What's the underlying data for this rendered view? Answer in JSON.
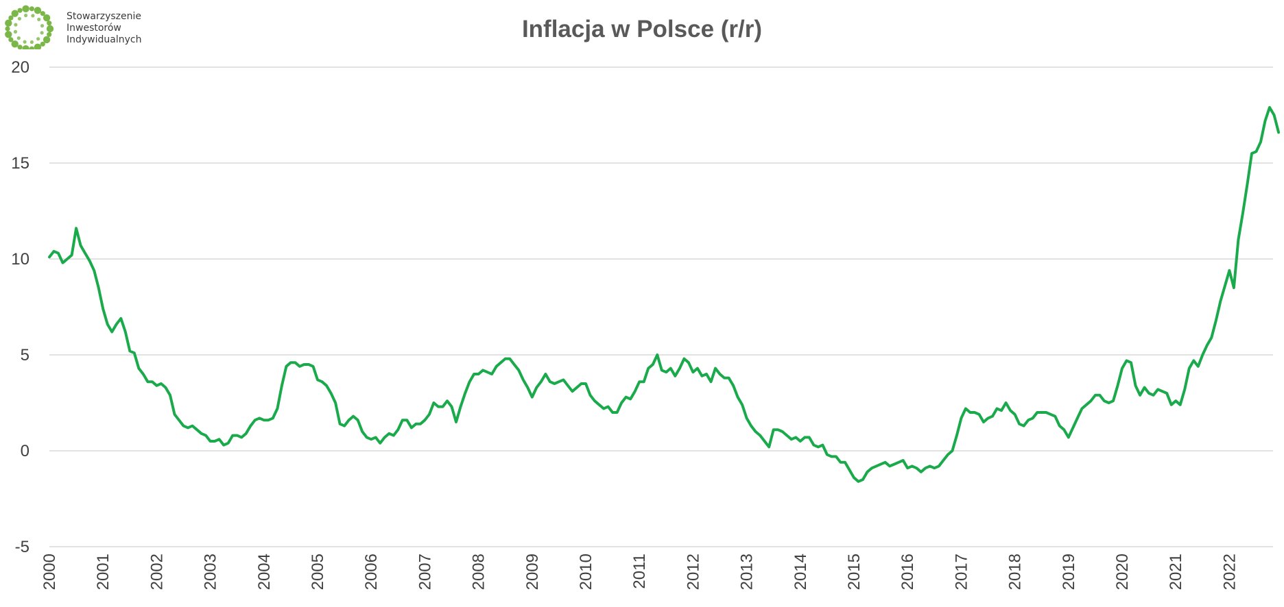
{
  "logo": {
    "lines": [
      "Stowarzyszenie",
      "Inwestorów",
      "Indywidualnych"
    ],
    "color": "#7ab648"
  },
  "chart_data": {
    "type": "line",
    "title": "Inflacja w Polsce (r/r)",
    "xlabel": "",
    "ylabel": "",
    "ylim": [
      -5,
      20
    ],
    "yticks": [
      20,
      15,
      10,
      5,
      0,
      -5
    ],
    "grid": true,
    "legend": "none",
    "line_color": "#1aaa4b",
    "x_start": "2000-01",
    "x_end": "2022-12",
    "x_frequency": "monthly",
    "x_tick_labels": [
      "2000",
      "2001",
      "2002",
      "2003",
      "2004",
      "2005",
      "2006",
      "2007",
      "2008",
      "2009",
      "2010",
      "2011",
      "2012",
      "2013",
      "2014",
      "2015",
      "2016",
      "2017",
      "2018",
      "2019",
      "2020",
      "2021",
      "2022"
    ],
    "series": [
      {
        "values": [
          10.1,
          10.4,
          10.3,
          9.8,
          10.0,
          10.2,
          11.6,
          10.7,
          10.3,
          9.9,
          9.4,
          8.5,
          7.4,
          6.6,
          6.2,
          6.6,
          6.9,
          6.2,
          5.2,
          5.1,
          4.3,
          4.0,
          3.6,
          3.6,
          3.4,
          3.5,
          3.3,
          2.9,
          1.9,
          1.6,
          1.3,
          1.2,
          1.3,
          1.1,
          0.9,
          0.8,
          0.5,
          0.5,
          0.6,
          0.3,
          0.4,
          0.8,
          0.8,
          0.7,
          0.9,
          1.3,
          1.6,
          1.7,
          1.6,
          1.6,
          1.7,
          2.2,
          3.4,
          4.4,
          4.6,
          4.6,
          4.4,
          4.5,
          4.5,
          4.4,
          3.7,
          3.6,
          3.4,
          3.0,
          2.5,
          1.4,
          1.3,
          1.6,
          1.8,
          1.6,
          1.0,
          0.7,
          0.6,
          0.7,
          0.4,
          0.7,
          0.9,
          0.8,
          1.1,
          1.6,
          1.6,
          1.2,
          1.4,
          1.4,
          1.6,
          1.9,
          2.5,
          2.3,
          2.3,
          2.6,
          2.3,
          1.5,
          2.3,
          3.0,
          3.6,
          4.0,
          4.0,
          4.2,
          4.1,
          4.0,
          4.4,
          4.6,
          4.8,
          4.8,
          4.5,
          4.2,
          3.7,
          3.3,
          2.8,
          3.3,
          3.6,
          4.0,
          3.6,
          3.5,
          3.6,
          3.7,
          3.4,
          3.1,
          3.3,
          3.5,
          3.5,
          2.9,
          2.6,
          2.4,
          2.2,
          2.3,
          2.0,
          2.0,
          2.5,
          2.8,
          2.7,
          3.1,
          3.6,
          3.6,
          4.3,
          4.5,
          5.0,
          4.2,
          4.1,
          4.3,
          3.9,
          4.3,
          4.8,
          4.6,
          4.1,
          4.3,
          3.9,
          4.0,
          3.6,
          4.3,
          4.0,
          3.8,
          3.8,
          3.4,
          2.8,
          2.4,
          1.7,
          1.3,
          1.0,
          0.8,
          0.5,
          0.2,
          1.1,
          1.1,
          1.0,
          0.8,
          0.6,
          0.7,
          0.5,
          0.7,
          0.7,
          0.3,
          0.2,
          0.3,
          -0.2,
          -0.3,
          -0.3,
          -0.6,
          -0.6,
          -1.0,
          -1.4,
          -1.6,
          -1.5,
          -1.1,
          -0.9,
          -0.8,
          -0.7,
          -0.6,
          -0.8,
          -0.7,
          -0.6,
          -0.5,
          -0.9,
          -0.8,
          -0.9,
          -1.1,
          -0.9,
          -0.8,
          -0.9,
          -0.8,
          -0.5,
          -0.2,
          0.0,
          0.8,
          1.7,
          2.2,
          2.0,
          2.0,
          1.9,
          1.5,
          1.7,
          1.8,
          2.2,
          2.1,
          2.5,
          2.1,
          1.9,
          1.4,
          1.3,
          1.6,
          1.7,
          2.0,
          2.0,
          2.0,
          1.9,
          1.8,
          1.3,
          1.1,
          0.7,
          1.2,
          1.7,
          2.2,
          2.4,
          2.6,
          2.9,
          2.9,
          2.6,
          2.5,
          2.6,
          3.4,
          4.3,
          4.7,
          4.6,
          3.4,
          2.9,
          3.3,
          3.0,
          2.9,
          3.2,
          3.1,
          3.0,
          2.4,
          2.6,
          2.4,
          3.2,
          4.3,
          4.7,
          4.4,
          5.0,
          5.5,
          5.9,
          6.8,
          7.8,
          8.6,
          9.4,
          8.5,
          11.0,
          12.4,
          13.9,
          15.5,
          15.6,
          16.1,
          17.2,
          17.9,
          17.5,
          16.6
        ]
      }
    ]
  }
}
